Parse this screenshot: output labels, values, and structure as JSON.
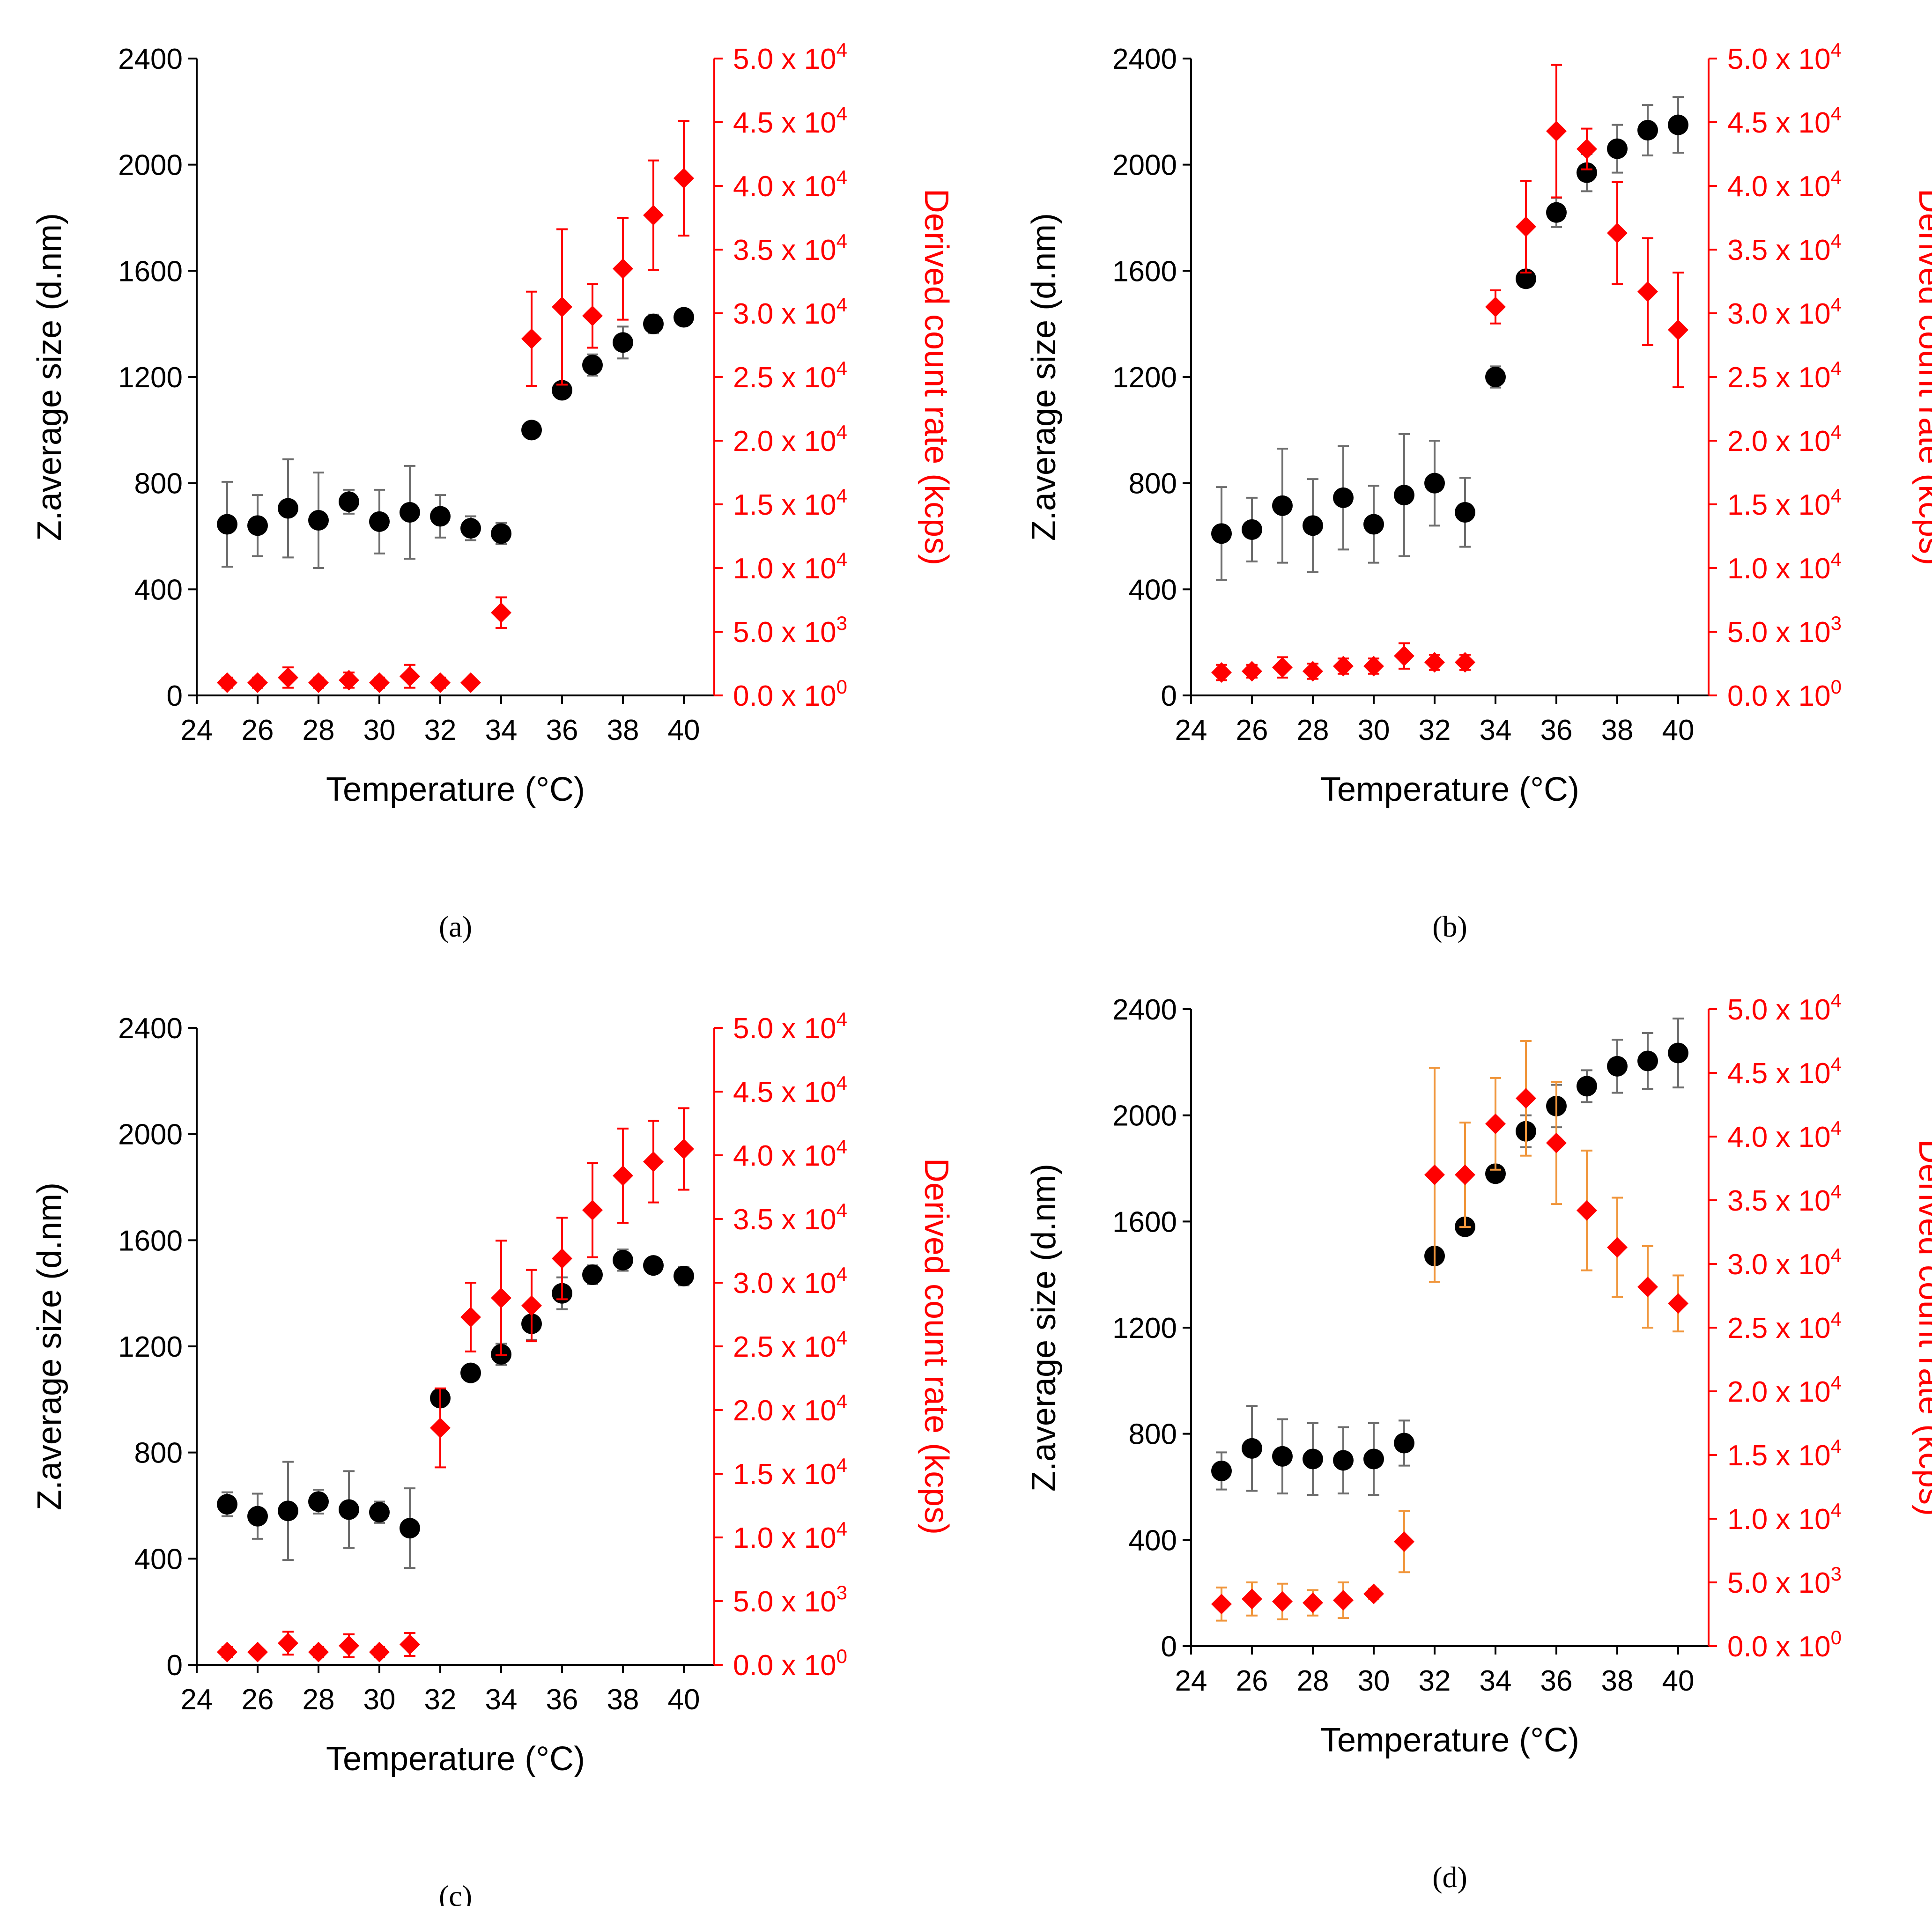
{
  "colors": {
    "size_series": "#000000",
    "size_error_bar": "#6e6e6e",
    "count_series": "#ff0000",
    "count_axis": "#ff0000",
    "count_error_bar_orange": "#f0963c"
  },
  "chart_data": [
    {
      "type": "scatter",
      "panel_label": "(a)",
      "xlabel": "Temperature (°C)",
      "ylabel": "Z.average size (d.nm)",
      "y2label": "Derived count rate (kcps)",
      "xlim": [
        24,
        41
      ],
      "ylim": [
        0,
        2400
      ],
      "y2lim": [
        0,
        50000
      ],
      "xticks": [
        "24",
        "26",
        "28",
        "30",
        "32",
        "34",
        "36",
        "38",
        "40"
      ],
      "yticks": [
        "0",
        "400",
        "800",
        "1200",
        "1600",
        "2000",
        "2400"
      ],
      "y2ticks": [
        {
          "mantissa": "0.0",
          "exp": "0"
        },
        {
          "mantissa": "5.0",
          "exp": "3"
        },
        {
          "mantissa": "1.0",
          "exp": "4"
        },
        {
          "mantissa": "1.5",
          "exp": "4"
        },
        {
          "mantissa": "2.0",
          "exp": "4"
        },
        {
          "mantissa": "2.5",
          "exp": "4"
        },
        {
          "mantissa": "3.0",
          "exp": "4"
        },
        {
          "mantissa": "3.5",
          "exp": "4"
        },
        {
          "mantissa": "4.0",
          "exp": "4"
        },
        {
          "mantissa": "4.5",
          "exp": "4"
        },
        {
          "mantissa": "5.0",
          "exp": "4"
        }
      ],
      "count_error_color": "red",
      "series": [
        {
          "name": "Z.average size",
          "axis": "left",
          "marker": "circle",
          "x": [
            25,
            26,
            27,
            28,
            29,
            30,
            31,
            32,
            33,
            34,
            35,
            36,
            37,
            38,
            39,
            40
          ],
          "y": [
            645,
            640,
            705,
            660,
            730,
            655,
            690,
            675,
            630,
            610,
            1000,
            1150,
            1245,
            1330,
            1400,
            1425
          ],
          "err": [
            160,
            115,
            185,
            180,
            45,
            120,
            175,
            80,
            45,
            40,
            0,
            0,
            40,
            60,
            35,
            25
          ]
        },
        {
          "name": "Derived count rate",
          "axis": "right",
          "marker": "diamond",
          "x": [
            25,
            26,
            27,
            28,
            29,
            30,
            31,
            32,
            33,
            34,
            35,
            36,
            37,
            38,
            39,
            40
          ],
          "y": [
            1000,
            1000,
            1400,
            1000,
            1200,
            1000,
            1500,
            1000,
            1000,
            6500,
            28000,
            30500,
            29800,
            33500,
            37700,
            40600
          ],
          "err": [
            400,
            400,
            800,
            400,
            600,
            400,
            900,
            400,
            300,
            1200,
            3700,
            6100,
            2500,
            4000,
            4300,
            4500
          ]
        }
      ]
    },
    {
      "type": "scatter",
      "panel_label": "(b)",
      "xlabel": "Temperature (°C)",
      "ylabel": "Z.average size (d.nm)",
      "y2label": "Derived count rate (kcps)",
      "xlim": [
        24,
        41
      ],
      "ylim": [
        0,
        2400
      ],
      "y2lim": [
        0,
        50000
      ],
      "xticks": [
        "24",
        "26",
        "28",
        "30",
        "32",
        "34",
        "36",
        "38",
        "40"
      ],
      "yticks": [
        "0",
        "400",
        "800",
        "1200",
        "1600",
        "2000",
        "2400"
      ],
      "y2ticks": [
        {
          "mantissa": "0.0",
          "exp": "0"
        },
        {
          "mantissa": "5.0",
          "exp": "3"
        },
        {
          "mantissa": "1.0",
          "exp": "4"
        },
        {
          "mantissa": "1.5",
          "exp": "4"
        },
        {
          "mantissa": "2.0",
          "exp": "4"
        },
        {
          "mantissa": "2.5",
          "exp": "4"
        },
        {
          "mantissa": "3.0",
          "exp": "4"
        },
        {
          "mantissa": "3.5",
          "exp": "4"
        },
        {
          "mantissa": "4.0",
          "exp": "4"
        },
        {
          "mantissa": "4.5",
          "exp": "4"
        },
        {
          "mantissa": "5.0",
          "exp": "4"
        }
      ],
      "count_error_color": "red",
      "series": [
        {
          "name": "Z.average size",
          "axis": "left",
          "marker": "circle",
          "x": [
            25,
            26,
            27,
            28,
            29,
            30,
            31,
            32,
            33,
            34,
            35,
            36,
            37,
            38,
            39,
            40
          ],
          "y": [
            610,
            625,
            715,
            640,
            745,
            645,
            755,
            800,
            690,
            1200,
            1570,
            1820,
            1970,
            2060,
            2130,
            2150
          ],
          "err": [
            175,
            120,
            215,
            175,
            195,
            145,
            230,
            160,
            130,
            40,
            30,
            55,
            70,
            90,
            95,
            105
          ]
        },
        {
          "name": "Derived count rate",
          "axis": "right",
          "marker": "diamond",
          "x": [
            25,
            26,
            27,
            28,
            29,
            30,
            31,
            32,
            33,
            34,
            35,
            36,
            37,
            38,
            39,
            40
          ],
          "y": [
            1800,
            1900,
            2200,
            1900,
            2300,
            2300,
            3100,
            2600,
            2600,
            30500,
            36800,
            44300,
            42900,
            36300,
            31700,
            28700
          ],
          "err": [
            600,
            500,
            800,
            600,
            600,
            600,
            1000,
            600,
            600,
            1300,
            3600,
            5200,
            1600,
            4000,
            4200,
            4500
          ]
        }
      ]
    },
    {
      "type": "scatter",
      "panel_label": "(c)",
      "xlabel": "Temperature (°C)",
      "ylabel": "Z.average size (d.nm)",
      "y2label": "Derived count rate (kcps)",
      "xlim": [
        24,
        41
      ],
      "ylim": [
        0,
        2400
      ],
      "y2lim": [
        0,
        50000
      ],
      "xticks": [
        "24",
        "26",
        "28",
        "30",
        "32",
        "34",
        "36",
        "38",
        "40"
      ],
      "yticks": [
        "0",
        "400",
        "800",
        "1200",
        "1600",
        "2000",
        "2400"
      ],
      "y2ticks": [
        {
          "mantissa": "0.0",
          "exp": "0"
        },
        {
          "mantissa": "5.0",
          "exp": "3"
        },
        {
          "mantissa": "1.0",
          "exp": "4"
        },
        {
          "mantissa": "1.5",
          "exp": "4"
        },
        {
          "mantissa": "2.0",
          "exp": "4"
        },
        {
          "mantissa": "2.5",
          "exp": "4"
        },
        {
          "mantissa": "3.0",
          "exp": "4"
        },
        {
          "mantissa": "3.5",
          "exp": "4"
        },
        {
          "mantissa": "4.0",
          "exp": "4"
        },
        {
          "mantissa": "4.5",
          "exp": "4"
        },
        {
          "mantissa": "5.0",
          "exp": "4"
        }
      ],
      "count_error_color": "red",
      "series": [
        {
          "name": "Z.average size",
          "axis": "left",
          "marker": "circle",
          "x": [
            25,
            26,
            27,
            28,
            29,
            30,
            31,
            32,
            33,
            34,
            35,
            36,
            37,
            38,
            39,
            40
          ],
          "y": [
            605,
            560,
            580,
            615,
            585,
            575,
            515,
            1005,
            1100,
            1170,
            1285,
            1400,
            1470,
            1525,
            1505,
            1465
          ],
          "err": [
            45,
            85,
            185,
            45,
            145,
            40,
            150,
            30,
            25,
            40,
            60,
            60,
            35,
            40,
            25,
            35
          ]
        },
        {
          "name": "Derived count rate",
          "axis": "right",
          "marker": "diamond",
          "x": [
            25,
            26,
            27,
            28,
            29,
            30,
            31,
            32,
            33,
            34,
            35,
            36,
            37,
            38,
            39,
            40
          ],
          "y": [
            1000,
            1000,
            1700,
            1000,
            1500,
            1000,
            1600,
            18600,
            27300,
            28800,
            28200,
            31900,
            35700,
            38400,
            39500,
            40500
          ],
          "err": [
            400,
            300,
            900,
            400,
            900,
            400,
            900,
            3100,
            2700,
            4500,
            2800,
            3200,
            3700,
            3700,
            3200,
            3200
          ]
        }
      ]
    },
    {
      "type": "scatter",
      "panel_label": "(d)",
      "xlabel": "Temperature (°C)",
      "ylabel": "Z.average size (d.nm)",
      "y2label": "Derived count rate (kcps)",
      "xlim": [
        24,
        41
      ],
      "ylim": [
        0,
        2400
      ],
      "y2lim": [
        0,
        50000
      ],
      "xticks": [
        "24",
        "26",
        "28",
        "30",
        "32",
        "34",
        "36",
        "38",
        "40"
      ],
      "yticks": [
        "0",
        "400",
        "800",
        "1200",
        "1600",
        "2000",
        "2400"
      ],
      "y2ticks": [
        {
          "mantissa": "0.0",
          "exp": "0"
        },
        {
          "mantissa": "5.0",
          "exp": "3"
        },
        {
          "mantissa": "1.0",
          "exp": "4"
        },
        {
          "mantissa": "1.5",
          "exp": "4"
        },
        {
          "mantissa": "2.0",
          "exp": "4"
        },
        {
          "mantissa": "2.5",
          "exp": "4"
        },
        {
          "mantissa": "3.0",
          "exp": "4"
        },
        {
          "mantissa": "3.5",
          "exp": "4"
        },
        {
          "mantissa": "4.0",
          "exp": "4"
        },
        {
          "mantissa": "4.5",
          "exp": "4"
        },
        {
          "mantissa": "5.0",
          "exp": "4"
        }
      ],
      "count_error_color": "orange",
      "series": [
        {
          "name": "Z.average size",
          "axis": "left",
          "marker": "circle",
          "x": [
            25,
            26,
            27,
            28,
            29,
            30,
            31,
            32,
            33,
            34,
            35,
            36,
            37,
            38,
            39,
            40
          ],
          "y": [
            660,
            745,
            715,
            705,
            700,
            705,
            765,
            1470,
            1580,
            1780,
            1940,
            2035,
            2110,
            2185,
            2205,
            2235
          ],
          "err": [
            70,
            160,
            140,
            135,
            125,
            135,
            85,
            20,
            25,
            20,
            60,
            80,
            60,
            100,
            105,
            130
          ]
        },
        {
          "name": "Derived count rate",
          "axis": "right",
          "marker": "diamond",
          "x": [
            25,
            26,
            27,
            28,
            29,
            30,
            31,
            32,
            33,
            34,
            35,
            36,
            37,
            38,
            39,
            40
          ],
          "y": [
            3300,
            3700,
            3500,
            3400,
            3600,
            4100,
            8200,
            37000,
            37000,
            41000,
            43000,
            39500,
            34200,
            31300,
            28200,
            26900
          ],
          "err": [
            1300,
            1300,
            1400,
            1000,
            1400,
            400,
            2400,
            8400,
            4100,
            3600,
            4500,
            4800,
            4700,
            3900,
            3200,
            2200
          ]
        }
      ]
    }
  ]
}
